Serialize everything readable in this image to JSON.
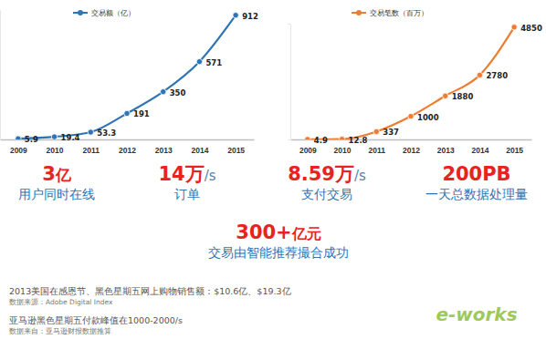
{
  "chart_data": [
    {
      "type": "line",
      "categories": [
        "2009",
        "2010",
        "2011",
        "2012",
        "2013",
        "2014",
        "2015"
      ],
      "series": [
        {
          "name": "交易额（亿）",
          "color": "#2e75b6",
          "marker": "circle",
          "line_style": "solid",
          "values": [
            5.9,
            19.4,
            53.3,
            191,
            350,
            571,
            912
          ]
        }
      ],
      "ylim": [
        0,
        950
      ],
      "yticks": [],
      "grid": false,
      "legend": "top",
      "data_labels": true,
      "tick_labels": "x"
    },
    {
      "type": "line",
      "categories": [
        "2009",
        "2010",
        "2011",
        "2012",
        "2013",
        "2014",
        "2015"
      ],
      "series": [
        {
          "name": "交易笔数（百万）",
          "color": "#ed7d31",
          "marker": "circle",
          "line_style": "solid",
          "values": [
            4.9,
            12.8,
            337,
            1000,
            1880,
            2780,
            4850
          ]
        }
      ],
      "ylim": [
        0,
        5000
      ],
      "yticks": [],
      "grid": false,
      "legend": "top",
      "data_labels": true,
      "tick_labels": "x"
    }
  ],
  "stats": [
    {
      "main": "3",
      "suffix": "亿",
      "label": "用户同时在线"
    },
    {
      "main": "14万",
      "suffix": "/s",
      "label": "订单"
    },
    {
      "main": "8.59万",
      "suffix": "/s",
      "label": "支付交易"
    },
    {
      "main": "200PB",
      "label": "一天总数据处理量"
    }
  ],
  "highlight": {
    "main": "300+",
    "suffix": "亿元",
    "label": "交易由智能推荐撮合成功"
  },
  "notes": [
    {
      "text": "2013美国在感恩节、黑色星期五网上购物销售额：$10.6亿、$19.3亿",
      "source": "数据来源：Adobe Digital Index"
    },
    {
      "text": "亚马逊黑色星期五付款峰值在1000-2000/s",
      "source": "数据来自：亚马逊财报数据推算"
    }
  ],
  "watermark": "e-works"
}
